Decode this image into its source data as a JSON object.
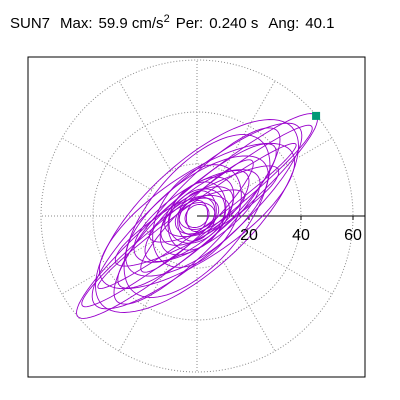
{
  "header": {
    "station": "SUN7",
    "max_label": "Max:",
    "max_value": "59.9 cm/s",
    "max_exp": "2",
    "per_label": "Per:",
    "per_value": "0.240 s",
    "ang_label": "Ang:",
    "ang_value": "40.1"
  },
  "chart_data": {
    "type": "scatter",
    "subtype": "polar orbit (particle motion)",
    "rings": [
      20,
      40,
      60
    ],
    "ring_labels": [
      "20",
      "40",
      "60"
    ],
    "spokes_deg": [
      0,
      30,
      60,
      90,
      120,
      150,
      180,
      210,
      240,
      270,
      300,
      330
    ],
    "grid": true,
    "colors": {
      "trace": "#9900cc",
      "marker": "#009977",
      "grid": "#888888",
      "axis": "#000000"
    },
    "max_point": {
      "x": 45.8,
      "y": 38.5,
      "magnitude": 59.9,
      "angle_deg": 40.1
    },
    "orbit_loops": [
      {
        "a": 60.0,
        "b": 10.0,
        "angle": 40.1
      },
      {
        "a": 56.0,
        "b": 7.0,
        "angle": 38.0
      },
      {
        "a": 52.0,
        "b": 14.0,
        "angle": 41.0
      },
      {
        "a": 50.0,
        "b": 20.0,
        "angle": 43.0
      },
      {
        "a": 47.0,
        "b": 5.0,
        "angle": 36.0
      },
      {
        "a": 45.0,
        "b": 12.0,
        "angle": 47.0
      },
      {
        "a": 44.0,
        "b": 16.0,
        "angle": 34.0
      },
      {
        "a": 40.0,
        "b": 10.0,
        "angle": 42.0
      },
      {
        "a": 38.0,
        "b": 18.0,
        "angle": 50.0
      },
      {
        "a": 36.0,
        "b": 8.0,
        "angle": 30.0
      },
      {
        "a": 33.0,
        "b": 14.0,
        "angle": 38.0
      },
      {
        "a": 30.0,
        "b": 6.0,
        "angle": 45.0
      },
      {
        "a": 28.0,
        "b": 11.0,
        "angle": 33.0
      },
      {
        "a": 25.0,
        "b": 9.0,
        "angle": 40.0
      },
      {
        "a": 22.0,
        "b": 14.0,
        "angle": 55.0
      },
      {
        "a": 20.0,
        "b": 6.0,
        "angle": 25.0
      },
      {
        "a": 18.0,
        "b": 10.0,
        "angle": 48.0
      },
      {
        "a": 16.0,
        "b": 8.0,
        "angle": 35.0
      },
      {
        "a": 14.0,
        "b": 10.0,
        "angle": 60.0
      },
      {
        "a": 13.0,
        "b": 7.0,
        "angle": 20.0
      },
      {
        "a": 12.0,
        "b": 9.0,
        "angle": 42.0
      },
      {
        "a": 10.0,
        "b": 7.0,
        "angle": 70.0
      },
      {
        "a": 9.0,
        "b": 6.0,
        "angle": 30.0
      },
      {
        "a": 8.0,
        "b": 6.0,
        "angle": 50.0
      },
      {
        "a": 7.0,
        "b": 5.0,
        "angle": 15.0
      },
      {
        "a": 6.0,
        "b": 4.0,
        "angle": 80.0
      },
      {
        "a": 5.0,
        "b": 4.0,
        "angle": 40.0
      }
    ]
  }
}
